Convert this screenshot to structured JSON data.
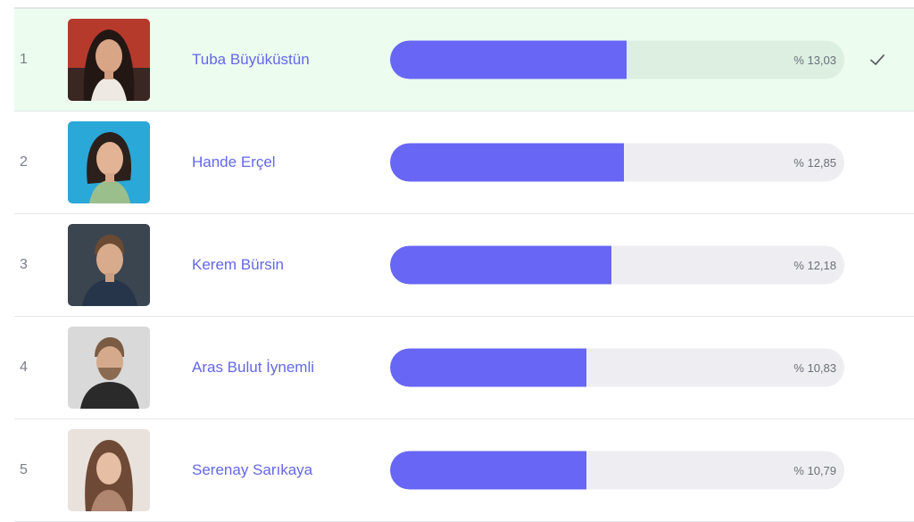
{
  "colors": {
    "accent": "#6766f5",
    "name_link": "#6467e8",
    "selected_row_bg": "#ecfdef",
    "bar_track": "#eeeef2"
  },
  "selected_icon": "check-icon",
  "rows": [
    {
      "rank": "1",
      "name": "Tuba Büyüküstün",
      "percent_label": "% 13,03",
      "percent": 13.03,
      "selected": true
    },
    {
      "rank": "2",
      "name": "Hande Erçel",
      "percent_label": "% 12,85",
      "percent": 12.85,
      "selected": false
    },
    {
      "rank": "3",
      "name": "Kerem Bürsin",
      "percent_label": "% 12,18",
      "percent": 12.18,
      "selected": false
    },
    {
      "rank": "4",
      "name": "Aras Bulut İynemli",
      "percent_label": "% 10,83",
      "percent": 10.83,
      "selected": false
    },
    {
      "rank": "5",
      "name": "Serenay Sarıkaya",
      "percent_label": "% 10,79",
      "percent": 10.79,
      "selected": false
    }
  ]
}
